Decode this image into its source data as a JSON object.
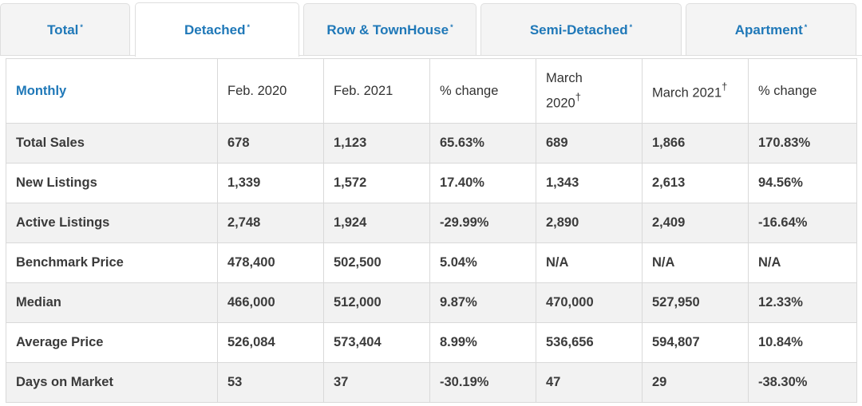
{
  "tabs": [
    {
      "label": "Total",
      "mark": "*"
    },
    {
      "label": "Detached",
      "mark": "*",
      "active": true
    },
    {
      "label": "Row & TownHouse",
      "mark": "*"
    },
    {
      "label": "Semi-Detached",
      "mark": "*"
    },
    {
      "label": "Apartment",
      "mark": "*"
    }
  ],
  "table": {
    "headers": {
      "monthly": "Monthly",
      "feb2020": "Feb. 2020",
      "feb2021": "Feb. 2021",
      "pct1": "% change",
      "mar2020_line1": "March",
      "mar2020_line2": "2020",
      "mar2020_mark": "†",
      "mar2021": "March 2021",
      "mar2021_mark": "†",
      "pct2": "% change"
    },
    "rows": [
      {
        "label": "Total Sales",
        "feb2020": "678",
        "feb2021": "1,123",
        "pct1": "65.63%",
        "mar2020": "689",
        "mar2021": "1,866",
        "pct2": "170.83%"
      },
      {
        "label": "New Listings",
        "feb2020": "1,339",
        "feb2021": "1,572",
        "pct1": "17.40%",
        "mar2020": "1,343",
        "mar2021": "2,613",
        "pct2": "94.56%"
      },
      {
        "label": "Active Listings",
        "feb2020": "2,748",
        "feb2021": "1,924",
        "pct1": "-29.99%",
        "mar2020": "2,890",
        "mar2021": "2,409",
        "pct2": "-16.64%"
      },
      {
        "label": "Benchmark Price",
        "feb2020": "478,400",
        "feb2021": "502,500",
        "pct1": "5.04%",
        "mar2020": "N/A",
        "mar2021": "N/A",
        "pct2": "N/A"
      },
      {
        "label": "Median",
        "feb2020": "466,000",
        "feb2021": "512,000",
        "pct1": "9.87%",
        "mar2020": "470,000",
        "mar2021": "527,950",
        "pct2": "12.33%"
      },
      {
        "label": "Average Price",
        "feb2020": "526,084",
        "feb2021": "573,404",
        "pct1": "8.99%",
        "mar2020": "536,656",
        "mar2021": "594,807",
        "pct2": "10.84%"
      },
      {
        "label": "Days on Market",
        "feb2020": "53",
        "feb2021": "37",
        "pct1": "-30.19%",
        "mar2020": "47",
        "mar2021": "29",
        "pct2": "-38.30%"
      }
    ]
  },
  "colors": {
    "accent": "#1f78b8",
    "row_shade": "#f2f2f2",
    "border": "#d9d9d9"
  }
}
